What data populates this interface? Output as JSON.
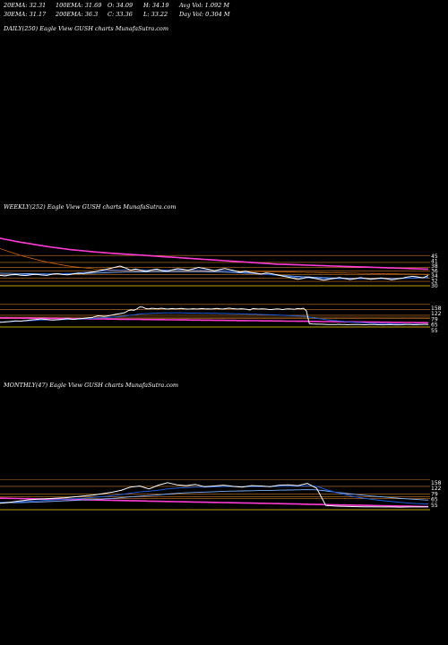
{
  "header": {
    "row1": [
      "20EMA: 32.31",
      "100EMA: 31.69",
      "O: 34.09",
      "H: 34.19",
      "Avg Vol: 1.092  M"
    ],
    "row2": [
      "30EMA: 31.17",
      "200EMA: 36.3",
      "C: 33.36",
      "L: 33.22",
      "Day Vol: 0.304  M"
    ]
  },
  "captions": {
    "daily": "DAILY(250) Eagle   View  GUSH charts MunafaSutra.com",
    "weekly": "WEEKLY(252) Eagle   View  GUSH charts MunafaSutra.com",
    "monthly": "MONTHLY(47) Eagle   View  GUSH charts MunafaSutra.com"
  },
  "colors": {
    "price": "#ffffff",
    "ema_fast": "#1e5bd6",
    "ema_mid": "#7fb0ff",
    "ema_slow": "#ff3bd6",
    "long_ema": "#c86414",
    "level": "#c87828",
    "baseline": "#ffd700"
  },
  "chart_data": [
    {
      "type": "line",
      "panel": "weekly",
      "ylim": [
        28,
        56
      ],
      "tick_labels": [
        "45",
        "41",
        "38",
        "36",
        "34",
        "32",
        "30"
      ],
      "price": [
        33.5,
        33.2,
        33.8,
        34.0,
        33.6,
        33.4,
        33.9,
        34.1,
        33.7,
        33.5,
        34.2,
        34.5,
        34.0,
        33.8,
        34.4,
        34.8,
        34.6,
        35.1,
        35.5,
        36.2,
        36.8,
        37.5,
        38.2,
        38.9,
        37.8,
        36.5,
        37.2,
        36.4,
        35.8,
        36.6,
        37.1,
        36.3,
        35.9,
        36.7,
        37.4,
        37.0,
        36.5,
        37.3,
        38.1,
        37.6,
        36.9,
        36.2,
        36.8,
        37.5,
        36.8,
        36.1,
        35.4,
        35.9,
        35.2,
        34.8,
        34.3,
        34.9,
        34.5,
        33.8,
        33.2,
        32.6,
        31.9,
        31.2,
        31.8,
        32.5,
        31.9,
        31.3,
        30.7,
        31.2,
        31.8,
        32.3,
        31.7,
        31.1,
        31.6,
        32.2,
        31.7,
        31.2,
        31.6,
        32.0,
        31.5,
        31.0,
        31.4,
        31.9,
        32.5,
        33.0,
        32.6,
        32.1,
        33.5
      ],
      "ema_fast": [
        33.6,
        33.6,
        33.7,
        33.8,
        33.8,
        33.9,
        34.0,
        34.1,
        34.1,
        34.2,
        34.3,
        34.4,
        34.5,
        34.6,
        34.7,
        34.9,
        35.1,
        35.3,
        35.6,
        35.9,
        36.1,
        36.3,
        36.5,
        36.6,
        36.7,
        36.7,
        36.7,
        36.7,
        36.6,
        36.6,
        36.6,
        36.6,
        36.6,
        36.6,
        36.6,
        36.6,
        36.6,
        36.6,
        36.6,
        36.6,
        36.5,
        36.4,
        36.3,
        36.2,
        36.0,
        35.8,
        35.5,
        35.3,
        35.0,
        34.7,
        34.4,
        34.1,
        33.8,
        33.5,
        33.2,
        32.9,
        32.6,
        32.3,
        32.1,
        32.0,
        31.9,
        31.8,
        31.7,
        31.6,
        31.6,
        31.6,
        31.6,
        31.6,
        31.6,
        31.6,
        31.6,
        31.6,
        31.6,
        31.6,
        31.6,
        31.6,
        31.7,
        31.8,
        31.9,
        32.1,
        32.2,
        32.3,
        32.5
      ],
      "ema_mid": [
        34.8,
        34.7,
        34.7,
        34.6,
        34.6,
        34.5,
        34.5,
        34.4,
        34.4,
        34.4,
        34.4,
        34.4,
        34.4,
        34.4,
        34.5,
        34.5,
        34.6,
        34.7,
        34.8,
        34.9,
        35.0,
        35.1,
        35.2,
        35.3,
        35.4,
        35.4,
        35.5,
        35.5,
        35.5,
        35.6,
        35.6,
        35.6,
        35.6,
        35.6,
        35.6,
        35.6,
        35.6,
        35.6,
        35.6,
        35.6,
        35.5,
        35.5,
        35.4,
        35.3,
        35.2,
        35.1,
        35.0,
        34.8,
        34.7,
        34.5,
        34.3,
        34.1,
        33.9,
        33.7,
        33.5,
        33.3,
        33.1,
        32.9,
        32.7,
        32.6,
        32.4,
        32.3,
        32.2,
        32.1,
        32.0,
        31.9,
        31.8,
        31.8,
        31.7,
        31.7,
        31.7,
        31.7,
        31.7,
        31.7,
        31.7,
        31.7,
        31.7,
        31.8,
        31.8,
        31.9,
        32.0,
        32.1,
        32.2
      ],
      "ema_slow": [
        55.0,
        54.4,
        53.8,
        53.2,
        52.7,
        52.2,
        51.7,
        51.2,
        50.7,
        50.2,
        49.8,
        49.4,
        49.0,
        48.6,
        48.3,
        48.0,
        47.7,
        47.4,
        47.1,
        46.9,
        46.6,
        46.4,
        46.2,
        46.0,
        45.8,
        45.6,
        45.4,
        45.2,
        45.0,
        44.8,
        44.6,
        44.4,
        44.2,
        44.0,
        43.8,
        43.6,
        43.4,
        43.2,
        43.0,
        42.8,
        42.6,
        42.4,
        42.2,
        42.0,
        41.8,
        41.6,
        41.4,
        41.2,
        41.0,
        40.8,
        40.6,
        40.4,
        40.2,
        40.0,
        39.9,
        39.8,
        39.7,
        39.6,
        39.5,
        39.4,
        39.3,
        39.2,
        39.1,
        39.0,
        38.9,
        38.8,
        38.7,
        38.6,
        38.5,
        38.4,
        38.3,
        38.2,
        38.1,
        38.0,
        37.9,
        37.8,
        37.7,
        37.6,
        37.5,
        37.4,
        37.3,
        37.2,
        37.1
      ],
      "long_ema": [
        49.0,
        48.0,
        47.0,
        46.0,
        45.0,
        44.2,
        43.4,
        42.6,
        41.9,
        41.2,
        40.6,
        40.0,
        39.5,
        39.0,
        38.6,
        38.2,
        37.9,
        37.6,
        37.3,
        37.1,
        36.9,
        36.8,
        36.7,
        36.6,
        36.5,
        36.5,
        36.5,
        36.5,
        36.5,
        36.5,
        36.5,
        36.5,
        36.5,
        36.5,
        36.5,
        36.4,
        36.4,
        36.3,
        36.3,
        36.2,
        36.2,
        36.1,
        36.1,
        36.0,
        36.0,
        35.9,
        35.9,
        35.8,
        35.8,
        35.7,
        35.7,
        35.6,
        35.6,
        35.5,
        35.5,
        35.4,
        35.4,
        35.3,
        35.3,
        35.2,
        35.2,
        35.1,
        35.1,
        35.0,
        35.0,
        34.9,
        34.9,
        34.8,
        34.8,
        34.7,
        34.7,
        34.6,
        34.6,
        34.5,
        34.5,
        34.4,
        34.4,
        34.3,
        34.3,
        34.2,
        34.2,
        34.1,
        34.1
      ],
      "levels": [
        45,
        41,
        38,
        36,
        34,
        32,
        30
      ]
    },
    {
      "type": "line",
      "panel": "weekly-long",
      "ylim": [
        0,
        170
      ],
      "tick_labels": [
        "158",
        "122",
        "79",
        "65",
        "55"
      ],
      "price": [
        28,
        29,
        31,
        33,
        35,
        37,
        38,
        36,
        39,
        41,
        44,
        46,
        48,
        50,
        52,
        49,
        47,
        45,
        44,
        46,
        48,
        50,
        52,
        54,
        51,
        49,
        52,
        54,
        56,
        58,
        60,
        62,
        70,
        75,
        73,
        71,
        74,
        78,
        82,
        86,
        90,
        94,
        98,
        112,
        118,
        115,
        125,
        140,
        138,
        128,
        125,
        130,
        128,
        126,
        130,
        128,
        124,
        126,
        128,
        125,
        127,
        129,
        126,
        124,
        125,
        127,
        124,
        126,
        128,
        125,
        126,
        124,
        127,
        129,
        126,
        124,
        128,
        131,
        128,
        126,
        124,
        127,
        125,
        122,
        118,
        128,
        126,
        124,
        126,
        125,
        122,
        120,
        123,
        125,
        124,
        120,
        124,
        126,
        124,
        122,
        128,
        126,
        130,
        112,
        18,
        16,
        15,
        14,
        14,
        13,
        12,
        12,
        11,
        12,
        13,
        12,
        11,
        10,
        11,
        12,
        12,
        11,
        10,
        10,
        11,
        12,
        11,
        10,
        10,
        9,
        10,
        11,
        10,
        9,
        9,
        10,
        11,
        12,
        11,
        10,
        10,
        11,
        12,
        13,
        12
      ],
      "ema_fast": [
        30,
        30,
        31,
        32,
        33,
        34,
        35,
        36,
        37,
        38,
        39,
        41,
        42,
        43,
        44,
        45,
        45,
        45,
        45,
        46,
        46,
        47,
        48,
        49,
        49,
        50,
        50,
        51,
        52,
        53,
        54,
        55,
        57,
        59,
        60,
        61,
        62,
        64,
        66,
        68,
        70,
        72,
        74,
        77,
        80,
        82,
        85,
        88,
        90,
        91,
        92,
        93,
        94,
        95,
        95,
        96,
        96,
        96,
        96,
        96,
        96,
        96,
        96,
        95,
        95,
        95,
        95,
        94,
        94,
        94,
        94,
        93,
        93,
        93,
        92,
        92,
        92,
        91,
        91,
        90,
        90,
        89,
        89,
        88,
        87,
        87,
        86,
        85,
        85,
        84,
        83,
        82,
        82,
        81,
        80,
        79,
        78,
        77,
        76,
        75,
        74,
        73,
        72,
        70,
        66,
        62,
        58,
        55,
        52,
        49,
        46,
        44,
        41,
        39,
        37,
        35,
        33,
        31,
        30,
        28,
        27,
        26,
        24,
        23,
        22,
        21,
        20,
        19,
        19,
        18,
        17,
        17,
        16,
        16,
        15,
        15,
        15,
        14,
        14,
        14,
        14,
        13,
        13,
        13,
        13
      ],
      "ema_slow": [
        60,
        60,
        60,
        60,
        59,
        59,
        59,
        59,
        58,
        58,
        58,
        58,
        57,
        57,
        57,
        57,
        56,
        56,
        56,
        56,
        55,
        55,
        55,
        55,
        54,
        54,
        54,
        54,
        53,
        53,
        53,
        53,
        52,
        52,
        52,
        52,
        51,
        51,
        51,
        51,
        50,
        50,
        50,
        50,
        49,
        49,
        49,
        49,
        48,
        48,
        48,
        48,
        47,
        47,
        47,
        47,
        46,
        46,
        46,
        46,
        45,
        45,
        45,
        45,
        44,
        44,
        44,
        44,
        43,
        43,
        43,
        43,
        42,
        42,
        42,
        42,
        41,
        41,
        41,
        41,
        40,
        40,
        40,
        40,
        39,
        39,
        39,
        39,
        38,
        38,
        38,
        38,
        37,
        37,
        37,
        37,
        36,
        36,
        36,
        36,
        35,
        35,
        35,
        35,
        34,
        34,
        34,
        34,
        33,
        33,
        33,
        33,
        32,
        32,
        32,
        32,
        31,
        31,
        31,
        31,
        30,
        30,
        30,
        30,
        29,
        29,
        29,
        29,
        28,
        28,
        28,
        28,
        27,
        27,
        27,
        27,
        26,
        26,
        26,
        26,
        25,
        25,
        25,
        25,
        24
      ],
      "levels": [
        158,
        122,
        79,
        65,
        55
      ]
    },
    {
      "type": "line",
      "panel": "monthly",
      "ylim": [
        0,
        170
      ],
      "tick_labels": [
        "158",
        "122",
        "79",
        "65",
        "55"
      ],
      "price": [
        30,
        35,
        42,
        48,
        52,
        55,
        58,
        60,
        65,
        70,
        75,
        82,
        90,
        100,
        118,
        124,
        108,
        128,
        142,
        130,
        126,
        132,
        120,
        124,
        128,
        122,
        118,
        126,
        124,
        120,
        128,
        130,
        126,
        138,
        112,
        18,
        15,
        13,
        12,
        11,
        11,
        10,
        10,
        9,
        10,
        10,
        11
      ],
      "ema_fast": [
        35,
        36,
        38,
        40,
        43,
        46,
        49,
        52,
        55,
        58,
        62,
        66,
        71,
        77,
        85,
        92,
        96,
        101,
        108,
        112,
        115,
        118,
        118,
        119,
        121,
        121,
        120,
        121,
        121,
        121,
        122,
        123,
        123,
        125,
        122,
        105,
        90,
        78,
        67,
        58,
        51,
        45,
        40,
        35,
        31,
        28,
        26
      ],
      "ema_mid": [
        32,
        33,
        34,
        35,
        37,
        39,
        41,
        43,
        45,
        48,
        50,
        53,
        56,
        60,
        65,
        69,
        72,
        76,
        80,
        84,
        87,
        89,
        91,
        93,
        95,
        96,
        97,
        98,
        99,
        100,
        101,
        102,
        103,
        104,
        103,
        97,
        91,
        85,
        79,
        74,
        69,
        65,
        61,
        57,
        53,
        50,
        47
      ],
      "ema_slow": [
        58,
        57,
        56,
        55,
        54,
        53,
        52,
        51,
        50,
        49,
        48,
        47,
        46,
        45,
        44,
        43,
        42,
        41,
        40,
        39,
        38,
        37,
        36,
        35,
        34,
        33,
        32,
        31,
        30,
        29,
        28,
        27,
        26,
        25,
        24,
        23,
        22,
        21,
        20,
        19,
        18,
        17,
        16,
        15,
        14,
        13,
        12
      ],
      "levels": [
        158,
        122,
        79,
        65,
        55
      ]
    }
  ]
}
